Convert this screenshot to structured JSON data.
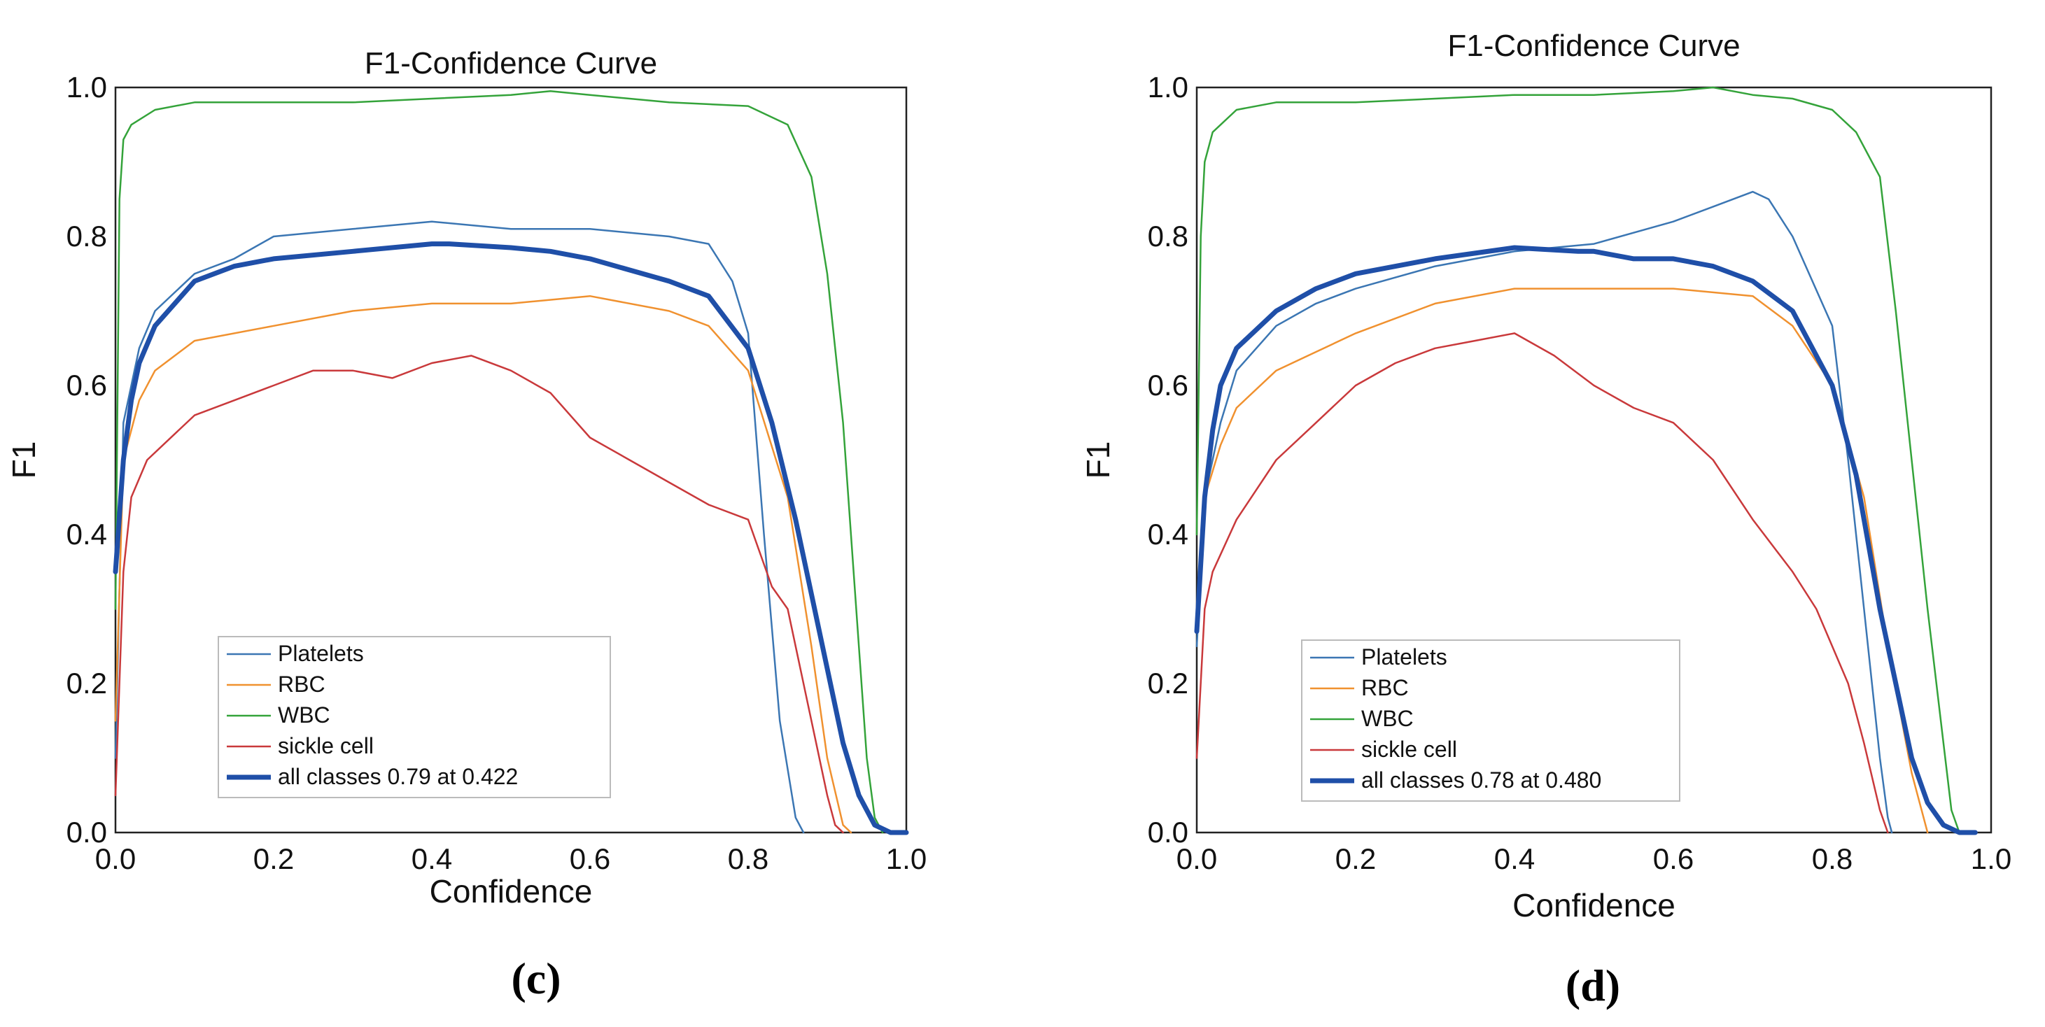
{
  "colors": {
    "Platelets": "#3b76b3",
    "RBC": "#f0912f",
    "WBC": "#34a33a",
    "sickle cell": "#c9393b",
    "all classes": "#1f4fa8"
  },
  "chart_data": [
    {
      "type": "line",
      "panel": "(c)",
      "title": "F1-Confidence Curve",
      "xlabel": "Confidence",
      "ylabel": "F1",
      "xlim": [
        0.0,
        1.0
      ],
      "ylim": [
        0.0,
        1.0
      ],
      "xticks": [
        "0.0",
        "0.2",
        "0.4",
        "0.6",
        "0.8",
        "1.0"
      ],
      "yticks": [
        "0.0",
        "0.2",
        "0.4",
        "0.6",
        "0.8",
        "1.0"
      ],
      "legend_position": "lower-left",
      "series": [
        {
          "name": "Platelets",
          "x": [
            0.0,
            0.01,
            0.03,
            0.05,
            0.1,
            0.15,
            0.2,
            0.3,
            0.4,
            0.5,
            0.6,
            0.7,
            0.75,
            0.78,
            0.8,
            0.82,
            0.84,
            0.86,
            0.87
          ],
          "y": [
            0.1,
            0.55,
            0.65,
            0.7,
            0.75,
            0.77,
            0.8,
            0.81,
            0.82,
            0.81,
            0.81,
            0.8,
            0.79,
            0.74,
            0.67,
            0.4,
            0.15,
            0.02,
            0.0
          ]
        },
        {
          "name": "RBC",
          "x": [
            0.0,
            0.01,
            0.03,
            0.05,
            0.1,
            0.2,
            0.3,
            0.4,
            0.5,
            0.6,
            0.7,
            0.75,
            0.8,
            0.85,
            0.88,
            0.9,
            0.92,
            0.93
          ],
          "y": [
            0.15,
            0.5,
            0.58,
            0.62,
            0.66,
            0.68,
            0.7,
            0.71,
            0.71,
            0.72,
            0.7,
            0.68,
            0.62,
            0.45,
            0.25,
            0.1,
            0.01,
            0.0
          ]
        },
        {
          "name": "WBC",
          "x": [
            0.0,
            0.005,
            0.01,
            0.02,
            0.05,
            0.1,
            0.2,
            0.3,
            0.4,
            0.5,
            0.55,
            0.6,
            0.7,
            0.8,
            0.85,
            0.88,
            0.9,
            0.92,
            0.94,
            0.95,
            0.96,
            0.97
          ],
          "y": [
            0.3,
            0.85,
            0.93,
            0.95,
            0.97,
            0.98,
            0.98,
            0.98,
            0.985,
            0.99,
            0.995,
            0.99,
            0.98,
            0.975,
            0.95,
            0.88,
            0.75,
            0.55,
            0.25,
            0.1,
            0.02,
            0.0
          ]
        },
        {
          "name": "sickle cell",
          "x": [
            0.0,
            0.01,
            0.02,
            0.04,
            0.06,
            0.1,
            0.15,
            0.2,
            0.25,
            0.3,
            0.35,
            0.4,
            0.45,
            0.5,
            0.55,
            0.6,
            0.65,
            0.7,
            0.75,
            0.8,
            0.83,
            0.85,
            0.88,
            0.9,
            0.91,
            0.92
          ],
          "y": [
            0.05,
            0.35,
            0.45,
            0.5,
            0.52,
            0.56,
            0.58,
            0.6,
            0.62,
            0.62,
            0.61,
            0.63,
            0.64,
            0.62,
            0.59,
            0.53,
            0.5,
            0.47,
            0.44,
            0.42,
            0.33,
            0.3,
            0.15,
            0.05,
            0.01,
            0.0
          ]
        },
        {
          "name": "all classes 0.79 at 0.422",
          "x": [
            0.0,
            0.01,
            0.02,
            0.03,
            0.05,
            0.1,
            0.15,
            0.2,
            0.3,
            0.4,
            0.422,
            0.5,
            0.55,
            0.6,
            0.7,
            0.75,
            0.8,
            0.83,
            0.86,
            0.88,
            0.9,
            0.92,
            0.94,
            0.96,
            0.98,
            1.0
          ],
          "y": [
            0.35,
            0.5,
            0.58,
            0.63,
            0.68,
            0.74,
            0.76,
            0.77,
            0.78,
            0.79,
            0.79,
            0.785,
            0.78,
            0.77,
            0.74,
            0.72,
            0.65,
            0.55,
            0.42,
            0.32,
            0.22,
            0.12,
            0.05,
            0.01,
            0.0,
            0.0
          ]
        }
      ]
    },
    {
      "type": "line",
      "panel": "(d)",
      "title": "F1-Confidence Curve",
      "xlabel": "Confidence",
      "ylabel": "F1",
      "xlim": [
        0.0,
        1.0
      ],
      "ylim": [
        0.0,
        1.0
      ],
      "xticks": [
        "0.0",
        "0.2",
        "0.4",
        "0.6",
        "0.8",
        "1.0"
      ],
      "yticks": [
        "0.0",
        "0.2",
        "0.4",
        "0.6",
        "0.8",
        "1.0"
      ],
      "legend_position": "lower-left",
      "series": [
        {
          "name": "Platelets",
          "x": [
            0.0,
            0.01,
            0.03,
            0.05,
            0.1,
            0.15,
            0.2,
            0.3,
            0.4,
            0.5,
            0.6,
            0.65,
            0.7,
            0.72,
            0.75,
            0.8,
            0.82,
            0.84,
            0.86,
            0.87,
            0.875
          ],
          "y": [
            0.25,
            0.45,
            0.55,
            0.62,
            0.68,
            0.71,
            0.73,
            0.76,
            0.78,
            0.79,
            0.82,
            0.84,
            0.86,
            0.85,
            0.8,
            0.68,
            0.5,
            0.3,
            0.1,
            0.02,
            0.0
          ]
        },
        {
          "name": "RBC",
          "x": [
            0.0,
            0.01,
            0.03,
            0.05,
            0.1,
            0.2,
            0.3,
            0.4,
            0.5,
            0.6,
            0.7,
            0.75,
            0.8,
            0.84,
            0.87,
            0.9,
            0.92
          ],
          "y": [
            0.3,
            0.45,
            0.52,
            0.57,
            0.62,
            0.67,
            0.71,
            0.73,
            0.73,
            0.73,
            0.72,
            0.68,
            0.6,
            0.45,
            0.25,
            0.08,
            0.0
          ]
        },
        {
          "name": "WBC",
          "x": [
            0.0,
            0.005,
            0.01,
            0.02,
            0.05,
            0.1,
            0.2,
            0.3,
            0.4,
            0.5,
            0.6,
            0.65,
            0.7,
            0.75,
            0.8,
            0.83,
            0.86,
            0.88,
            0.9,
            0.92,
            0.94,
            0.95,
            0.96
          ],
          "y": [
            0.4,
            0.8,
            0.9,
            0.94,
            0.97,
            0.98,
            0.98,
            0.985,
            0.99,
            0.99,
            0.995,
            1.0,
            0.99,
            0.985,
            0.97,
            0.94,
            0.88,
            0.7,
            0.5,
            0.3,
            0.12,
            0.03,
            0.0
          ]
        },
        {
          "name": "sickle cell",
          "x": [
            0.0,
            0.01,
            0.02,
            0.05,
            0.1,
            0.15,
            0.2,
            0.25,
            0.3,
            0.35,
            0.4,
            0.45,
            0.5,
            0.55,
            0.6,
            0.65,
            0.7,
            0.75,
            0.78,
            0.8,
            0.82,
            0.84,
            0.86,
            0.87
          ],
          "y": [
            0.1,
            0.3,
            0.35,
            0.42,
            0.5,
            0.55,
            0.6,
            0.63,
            0.65,
            0.66,
            0.67,
            0.64,
            0.6,
            0.57,
            0.55,
            0.5,
            0.42,
            0.35,
            0.3,
            0.25,
            0.2,
            0.12,
            0.03,
            0.0
          ]
        },
        {
          "name": "all classes 0.78 at 0.480",
          "x": [
            0.0,
            0.01,
            0.02,
            0.03,
            0.05,
            0.1,
            0.15,
            0.2,
            0.3,
            0.4,
            0.48,
            0.5,
            0.55,
            0.6,
            0.65,
            0.7,
            0.75,
            0.8,
            0.83,
            0.86,
            0.88,
            0.9,
            0.92,
            0.94,
            0.96,
            0.98
          ],
          "y": [
            0.27,
            0.45,
            0.54,
            0.6,
            0.65,
            0.7,
            0.73,
            0.75,
            0.77,
            0.785,
            0.78,
            0.78,
            0.77,
            0.77,
            0.76,
            0.74,
            0.7,
            0.6,
            0.48,
            0.3,
            0.2,
            0.1,
            0.04,
            0.01,
            0.0,
            0.0
          ]
        }
      ]
    }
  ],
  "captions": [
    "(c)",
    "(d)"
  ]
}
